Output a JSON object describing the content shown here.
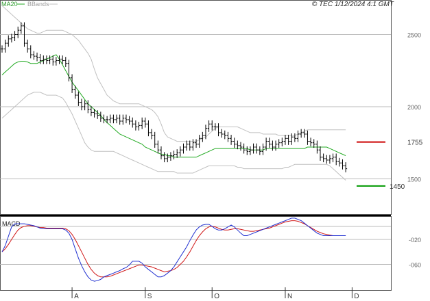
{
  "header": {
    "legend_ma": "MA20",
    "legend_bbands": "BBands",
    "credit": "© TEC 1/12/2024 4:1 GMT"
  },
  "macd_panel": {
    "title": "MACD"
  },
  "levels": {
    "resistance": {
      "label": "1755",
      "value": 1755,
      "color": "#cc0000"
    },
    "support": {
      "label": "1450",
      "value": 1450,
      "color": "#009900"
    }
  },
  "colors": {
    "ma20": "#22aa22",
    "bbands": "#c0c0c0",
    "bars": "#000000",
    "macd": "#1f2fd0",
    "signal": "#d01818",
    "grid": "#bbbbbb"
  },
  "chart_data": [
    {
      "type": "line",
      "panel": "price",
      "y_ticks": [
        {
          "value": 2500,
          "label": "2500"
        },
        {
          "value": 2000,
          "label": "2000"
        },
        {
          "value": 1500,
          "label": "1500"
        }
      ],
      "x_ticks": [
        {
          "index": 22,
          "label": "A"
        },
        {
          "index": 45,
          "label": "S"
        },
        {
          "index": 66,
          "label": "O"
        },
        {
          "index": 89,
          "label": "N"
        },
        {
          "index": 110,
          "label": "D"
        }
      ],
      "ylim": [
        1260,
        2730
      ],
      "series": [
        {
          "name": "MA20",
          "values": [
            2220,
            2240,
            2260,
            2280,
            2300,
            2310,
            2315,
            2315,
            2310,
            2300,
            2300,
            2300,
            2310,
            2320,
            2330,
            2340,
            2350,
            2360,
            2330,
            2290,
            2250,
            2210,
            2170,
            2140,
            2110,
            2080,
            2050,
            2020,
            2000,
            1980,
            1960,
            1940,
            1910,
            1890,
            1870,
            1850,
            1830,
            1810,
            1800,
            1790,
            1780,
            1770,
            1760,
            1750,
            1740,
            1720,
            1710,
            1700,
            1690,
            1680,
            1670,
            1670,
            1660,
            1660,
            1650,
            1650,
            1650,
            1650,
            1650,
            1650,
            1650,
            1650,
            1660,
            1670,
            1680,
            1690,
            1700,
            1710,
            1710,
            1710,
            1710,
            1710,
            1710,
            1710,
            1710,
            1710,
            1710,
            1710,
            1700,
            1700,
            1700,
            1700,
            1700,
            1710,
            1710,
            1710,
            1710,
            1710,
            1710,
            1710,
            1710,
            1710,
            1710,
            1710,
            1710,
            1710,
            1720,
            1720,
            1720,
            1720,
            1720,
            1720,
            1720,
            1710,
            1700,
            1690,
            1680,
            1670,
            1660
          ]
        },
        {
          "name": "BBands upper",
          "values": [
            2700,
            2680,
            2660,
            2640,
            2620,
            2600,
            2580,
            2560,
            2540,
            2530,
            2520,
            2510,
            2510,
            2520,
            2530,
            2530,
            2530,
            2530,
            2530,
            2530,
            2520,
            2510,
            2500,
            2480,
            2460,
            2430,
            2400,
            2370,
            2330,
            2260,
            2200,
            2160,
            2120,
            2080,
            2060,
            2040,
            2030,
            2020,
            2020,
            2020,
            2020,
            2020,
            2020,
            2020,
            2010,
            2000,
            1990,
            1980,
            1960,
            1930,
            1880,
            1820,
            1790,
            1780,
            1770,
            1760,
            1760,
            1760,
            1760,
            1760,
            1760,
            1760,
            1770,
            1780,
            1790,
            1810,
            1830,
            1850,
            1860,
            1860,
            1860,
            1860,
            1860,
            1860,
            1860,
            1850,
            1840,
            1830,
            1820,
            1820,
            1820,
            1820,
            1810,
            1810,
            1810,
            1810,
            1810,
            1800,
            1800,
            1800,
            1800,
            1800,
            1800,
            1810,
            1820,
            1830,
            1840,
            1840,
            1840,
            1840,
            1840,
            1840,
            1840,
            1840,
            1840,
            1840,
            1840,
            1840,
            1840
          ]
        },
        {
          "name": "BBands lower",
          "values": [
            1920,
            1940,
            1960,
            1980,
            2000,
            2020,
            2040,
            2060,
            2080,
            2090,
            2100,
            2100,
            2100,
            2090,
            2080,
            2080,
            2080,
            2080,
            2070,
            2060,
            2030,
            1990,
            1950,
            1900,
            1850,
            1800,
            1750,
            1720,
            1700,
            1690,
            1690,
            1690,
            1690,
            1690,
            1690,
            1690,
            1680,
            1670,
            1660,
            1650,
            1640,
            1630,
            1620,
            1610,
            1600,
            1590,
            1580,
            1570,
            1560,
            1550,
            1550,
            1550,
            1550,
            1550,
            1550,
            1540,
            1540,
            1540,
            1540,
            1540,
            1540,
            1550,
            1560,
            1570,
            1580,
            1590,
            1590,
            1590,
            1590,
            1590,
            1590,
            1590,
            1590,
            1590,
            1580,
            1580,
            1570,
            1570,
            1570,
            1570,
            1570,
            1570,
            1570,
            1570,
            1570,
            1570,
            1570,
            1570,
            1570,
            1580,
            1580,
            1590,
            1600,
            1600,
            1600,
            1600,
            1600,
            1600,
            1600,
            1600,
            1600,
            1600,
            1600,
            1590,
            1570,
            1550,
            1530,
            1510,
            1490
          ]
        },
        {
          "name": "Price",
          "values": [
            2400,
            2440,
            2470,
            2480,
            2500,
            2530,
            2560,
            2440,
            2400,
            2360,
            2350,
            2340,
            2320,
            2330,
            2320,
            2330,
            2310,
            2320,
            2330,
            2320,
            2300,
            2200,
            2120,
            2080,
            2030,
            2000,
            2020,
            1980,
            1960,
            1950,
            1940,
            1920,
            1910,
            1910,
            1920,
            1910,
            1920,
            1900,
            1920,
            1910,
            1900,
            1880,
            1860,
            1870,
            1900,
            1880,
            1820,
            1800,
            1740,
            1700,
            1660,
            1640,
            1650,
            1660,
            1670,
            1680,
            1700,
            1720,
            1740,
            1720,
            1750,
            1740,
            1780,
            1800,
            1850,
            1880,
            1860,
            1860,
            1820,
            1810,
            1800,
            1780,
            1760,
            1740,
            1730,
            1720,
            1700,
            1690,
            1700,
            1720,
            1700,
            1690,
            1720,
            1760,
            1740,
            1720,
            1740,
            1750,
            1760,
            1780,
            1760,
            1790,
            1780,
            1810,
            1820,
            1810,
            1760,
            1750,
            1740,
            1700,
            1650,
            1640,
            1630,
            1640,
            1650,
            1620,
            1610,
            1590,
            1570
          ]
        }
      ]
    },
    {
      "type": "line",
      "panel": "macd",
      "y_ticks": [
        {
          "value": -20,
          "label": "-020"
        },
        {
          "value": -60,
          "label": "-060"
        }
      ],
      "ylim": [
        -100,
        15
      ],
      "series": [
        {
          "name": "MACD",
          "values": [
            -40,
            -30,
            -15,
            0,
            5,
            5,
            5,
            5,
            4,
            3,
            2,
            0,
            -2,
            -3,
            -3,
            -3,
            -3,
            -3,
            -3,
            -3,
            -5,
            -10,
            -20,
            -35,
            -50,
            -62,
            -72,
            -80,
            -85,
            -87,
            -86,
            -84,
            -80,
            -78,
            -76,
            -74,
            -72,
            -70,
            -67,
            -65,
            -61,
            -55,
            -55,
            -55,
            -58,
            -64,
            -68,
            -72,
            -76,
            -80,
            -80,
            -78,
            -74,
            -70,
            -64,
            -56,
            -48,
            -40,
            -32,
            -22,
            -13,
            -5,
            0,
            3,
            4,
            4,
            1,
            -3,
            -5,
            -5,
            -3,
            0,
            3,
            0,
            -5,
            -10,
            -14,
            -14,
            -12,
            -10,
            -8,
            -6,
            -4,
            -2,
            0,
            2,
            4,
            6,
            8,
            10,
            12,
            14,
            14,
            12,
            10,
            6,
            2,
            -2,
            -6,
            -10,
            -12,
            -14,
            -14,
            -14,
            -14,
            -14,
            -14,
            -14,
            -14
          ]
        },
        {
          "name": "Signal",
          "values": [
            -40,
            -35,
            -28,
            -20,
            -12,
            -5,
            -1,
            1,
            2,
            2,
            1,
            0,
            -1,
            -1,
            -2,
            -2,
            -2,
            -2,
            -2,
            -2,
            -3,
            -6,
            -12,
            -20,
            -30,
            -40,
            -50,
            -60,
            -68,
            -74,
            -78,
            -80,
            -80,
            -80,
            -79,
            -77,
            -75,
            -73,
            -71,
            -69,
            -67,
            -65,
            -63,
            -61,
            -61,
            -62,
            -63,
            -64,
            -66,
            -68,
            -70,
            -72,
            -71,
            -70,
            -68,
            -65,
            -60,
            -55,
            -48,
            -40,
            -31,
            -22,
            -14,
            -8,
            -3,
            0,
            1,
            0,
            -2,
            -4,
            -5,
            -5,
            -4,
            -3,
            -3,
            -4,
            -5,
            -6,
            -7,
            -7,
            -6,
            -5,
            -4,
            -3,
            -2,
            0,
            2,
            4,
            6,
            8,
            9,
            10,
            10,
            9,
            7,
            5,
            2,
            -1,
            -4,
            -7,
            -9,
            -11,
            -12,
            -13,
            -14,
            -14,
            -14,
            -14,
            -14
          ]
        }
      ]
    }
  ]
}
